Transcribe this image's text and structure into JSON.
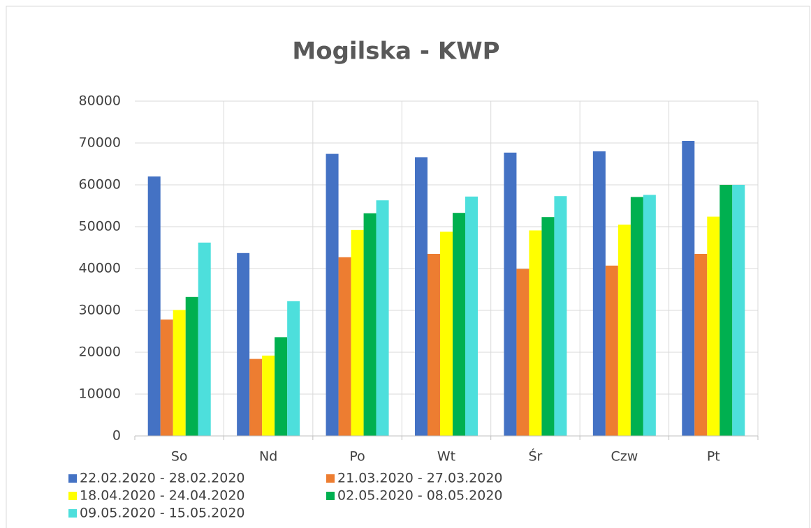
{
  "chart_data": {
    "type": "bar",
    "title": "Mogilska - KWP",
    "categories": [
      "So",
      "Nd",
      "Po",
      "Wt",
      "Śr",
      "Czw",
      "Pt"
    ],
    "series": [
      {
        "name": "22.02.2020 - 28.02.2020",
        "color": "#4472c4",
        "values": [
          62000,
          43700,
          67400,
          66600,
          67700,
          68000,
          70500
        ]
      },
      {
        "name": "21.03.2020 - 27.03.2020",
        "color": "#ed7d31",
        "values": [
          27800,
          18400,
          42700,
          43500,
          39900,
          40700,
          43500
        ]
      },
      {
        "name": "18.04.2020 - 24.04.2020",
        "color": "#ffff00",
        "values": [
          30100,
          19200,
          49200,
          48800,
          49100,
          50500,
          52400
        ]
      },
      {
        "name": "02.05.2020 - 08.05.2020",
        "color": "#00b050",
        "values": [
          33200,
          23600,
          53200,
          53300,
          52300,
          57100,
          60000
        ]
      },
      {
        "name": "09.05.2020 - 15.05.2020",
        "color": "#4ddfdc",
        "values": [
          46200,
          32200,
          56300,
          57200,
          57300,
          57600,
          60000
        ]
      }
    ],
    "ylim": [
      0,
      80000
    ],
    "yticks": [
      0,
      10000,
      20000,
      30000,
      40000,
      50000,
      60000,
      70000,
      80000
    ],
    "grid": true,
    "legend": "bottom"
  }
}
